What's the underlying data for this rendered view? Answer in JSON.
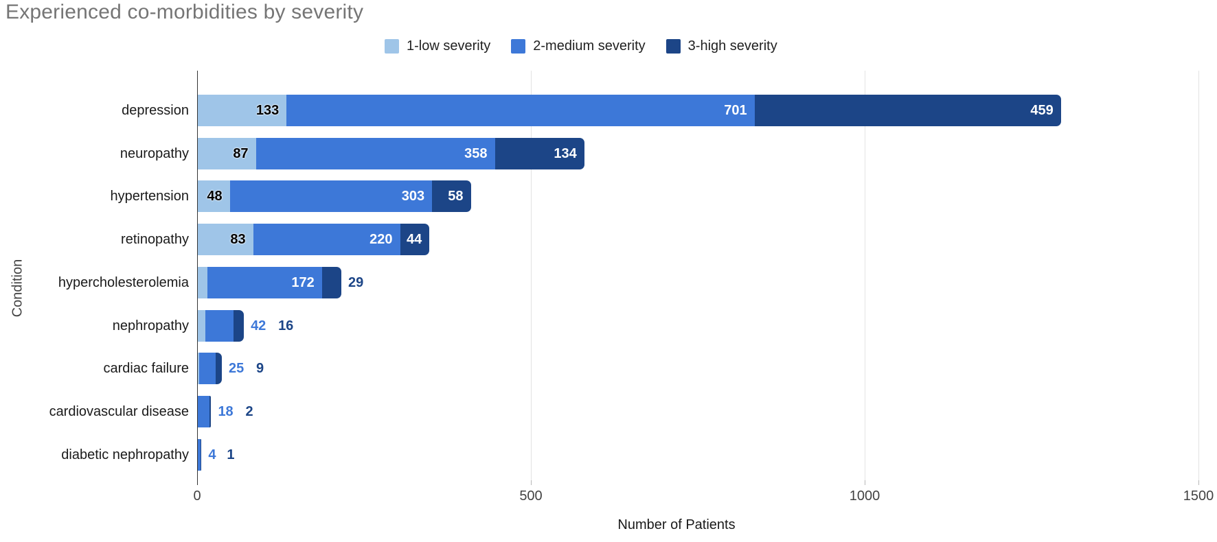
{
  "chart_data": {
    "type": "bar",
    "orientation": "horizontal",
    "stacked": true,
    "title": "Experienced co-morbidities by severity",
    "xlabel": "Number of Patients",
    "ylabel": "Condition",
    "categories": [
      "depression",
      "neuropathy",
      "hypertension",
      "retinopathy",
      "hypercholesterolemia",
      "nephropathy",
      "cardiac failure",
      "cardiovascular disease",
      "diabetic nephropathy"
    ],
    "series": [
      {
        "name": "1-low severity",
        "color": "#9fc5e8",
        "values": [
          133,
          87,
          48,
          83,
          14,
          11,
          2,
          0,
          0
        ]
      },
      {
        "name": "2-medium severity",
        "color": "#3d78d8",
        "values": [
          701,
          358,
          303,
          220,
          172,
          42,
          25,
          18,
          4
        ]
      },
      {
        "name": "3-high severity",
        "color": "#1c4587",
        "values": [
          459,
          134,
          58,
          44,
          29,
          16,
          9,
          2,
          1
        ]
      }
    ],
    "totals": [
      1293,
      579,
      409,
      347,
      215,
      69,
      36,
      20,
      5
    ],
    "xlim": [
      0,
      1500
    ],
    "xticks": [
      "0",
      "500",
      "1000",
      "1500"
    ],
    "grid": true,
    "legend_position": "top",
    "colors": {
      "title_text": "#757575",
      "axis_text": "#424242",
      "category_text": "#1a1a1a",
      "gridline": "#e3e3e3",
      "axis_line": "#333333",
      "inside_light_label": "#000000",
      "inside_dark_label": "#ffffff"
    }
  }
}
